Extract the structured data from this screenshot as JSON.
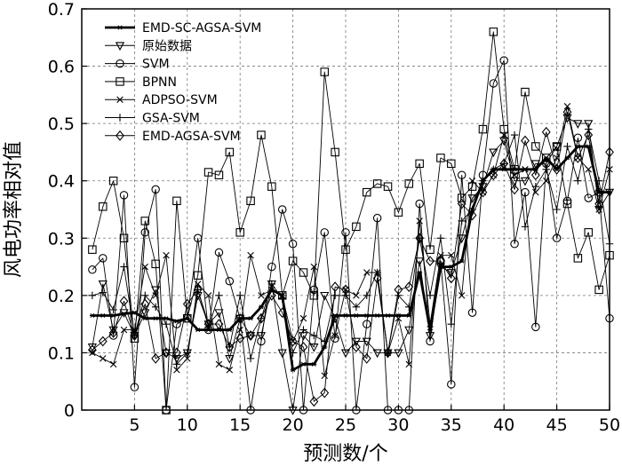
{
  "chart_data": {
    "type": "line",
    "xlabel": "预测数/个",
    "ylabel": "风电功率相对值",
    "xlim": [
      0,
      50
    ],
    "ylim": [
      0,
      0.7
    ],
    "xticks": [
      5,
      10,
      15,
      20,
      25,
      30,
      35,
      40,
      45,
      50
    ],
    "yticks": [
      0,
      0.1,
      0.2,
      0.3,
      0.4,
      0.5,
      0.6,
      0.7
    ],
    "xtick_labels": [
      "5",
      "10",
      "15",
      "20",
      "25",
      "30",
      "35",
      "40",
      "45",
      "50"
    ],
    "ytick_labels": [
      "0",
      "0.1",
      "0.2",
      "0.3",
      "0.4",
      "0.5",
      "0.6",
      "0.7"
    ],
    "grid": true,
    "legend_position": "top-left",
    "x": [
      1,
      2,
      3,
      4,
      5,
      6,
      7,
      8,
      9,
      10,
      11,
      12,
      13,
      14,
      15,
      16,
      17,
      18,
      19,
      20,
      21,
      22,
      23,
      24,
      25,
      26,
      27,
      28,
      29,
      30,
      31,
      32,
      33,
      34,
      35,
      36,
      37,
      38,
      39,
      40,
      41,
      42,
      43,
      44,
      45,
      46,
      47,
      48,
      49,
      50
    ],
    "series": [
      {
        "name": "EMD-SC-AGSA-SVM",
        "marker": "star",
        "bold": true,
        "values": [
          0.165,
          0.165,
          0.165,
          0.168,
          0.17,
          0.16,
          0.16,
          0.16,
          0.155,
          0.16,
          0.14,
          0.14,
          0.14,
          0.14,
          0.16,
          0.16,
          0.18,
          0.21,
          0.2,
          0.07,
          0.08,
          0.08,
          0.11,
          0.165,
          0.165,
          0.165,
          0.165,
          0.165,
          0.165,
          0.165,
          0.165,
          0.24,
          0.14,
          0.25,
          0.25,
          0.26,
          0.35,
          0.4,
          0.42,
          0.42,
          0.42,
          0.42,
          0.42,
          0.44,
          0.42,
          0.44,
          0.46,
          0.46,
          0.38,
          0.38
        ]
      },
      {
        "name": "原始数据",
        "marker": "triangle-down",
        "bold": false,
        "values": [
          0.11,
          0.22,
          0.14,
          0.17,
          0.13,
          0.17,
          0.21,
          0.1,
          0.09,
          0.1,
          0.2,
          0.15,
          0.17,
          0.09,
          0.16,
          0.13,
          0.13,
          0.22,
          0.1,
          0.0,
          0.13,
          0.11,
          0.2,
          0.16,
          0.1,
          0.12,
          0.12,
          0.1,
          0.1,
          0.1,
          0.14,
          0.26,
          0.13,
          0.25,
          0.24,
          0.3,
          0.37,
          0.39,
          0.45,
          0.47,
          0.4,
          0.4,
          0.43,
          0.43,
          0.46,
          0.51,
          0.5,
          0.5,
          0.35,
          0.38
        ]
      },
      {
        "name": "SVM",
        "marker": "circle",
        "bold": false,
        "values": [
          0.245,
          0.265,
          0.13,
          0.375,
          0.04,
          0.31,
          0.385,
          0.0,
          0.15,
          0.16,
          0.3,
          0.14,
          0.275,
          0.225,
          0.16,
          0.0,
          0.12,
          0.25,
          0.35,
          0.29,
          0.0,
          0.21,
          0.31,
          0.125,
          0.31,
          0.0,
          0.15,
          0.335,
          0.0,
          0.0,
          0.0,
          0.36,
          0.12,
          0.26,
          0.045,
          0.41,
          0.17,
          0.41,
          0.57,
          0.61,
          0.29,
          0.38,
          0.145,
          0.43,
          0.3,
          0.365,
          0.475,
          0.37,
          0.38,
          0.16
        ]
      },
      {
        "name": "BPNN",
        "marker": "square",
        "bold": false,
        "values": [
          0.28,
          0.355,
          0.4,
          0.3,
          0.125,
          0.33,
          0.255,
          0.0,
          0.365,
          0.16,
          0.235,
          0.415,
          0.41,
          0.45,
          0.31,
          0.365,
          0.48,
          0.39,
          0.2,
          0.26,
          0.24,
          0.2,
          0.59,
          0.45,
          0.28,
          0.32,
          0.38,
          0.395,
          0.39,
          0.345,
          0.395,
          0.43,
          0.28,
          0.44,
          0.43,
          0.37,
          0.39,
          0.49,
          0.66,
          0.49,
          0.42,
          0.555,
          0.46,
          0.44,
          0.46,
          0.36,
          0.265,
          0.31,
          0.21,
          0.27
        ]
      },
      {
        "name": "ADPSO-SVM",
        "marker": "x",
        "bold": false,
        "values": [
          0.1,
          0.09,
          0.08,
          0.14,
          0.14,
          0.25,
          0.2,
          0.27,
          0.07,
          0.09,
          0.22,
          0.2,
          0.08,
          0.07,
          0.14,
          0.27,
          0.2,
          0.21,
          0.2,
          0.12,
          0.16,
          0.25,
          0.06,
          0.13,
          0.21,
          0.2,
          0.24,
          0.24,
          0.1,
          0.16,
          0.08,
          0.33,
          0.15,
          0.27,
          0.27,
          0.2,
          0.4,
          0.38,
          0.41,
          0.48,
          0.41,
          0.42,
          0.38,
          0.4,
          0.44,
          0.53,
          0.44,
          0.42,
          0.35,
          0.42
        ]
      },
      {
        "name": "GSA-SVM",
        "marker": "plus",
        "bold": false,
        "values": [
          0.2,
          0.205,
          0.175,
          0.25,
          0.13,
          0.2,
          0.18,
          0.15,
          0.08,
          0.1,
          0.21,
          0.145,
          0.2,
          0.11,
          0.2,
          0.09,
          0.16,
          0.22,
          0.195,
          0.1,
          0.14,
          0.13,
          0.12,
          0.2,
          0.2,
          0.18,
          0.2,
          0.24,
          0.1,
          0.2,
          0.18,
          0.3,
          0.2,
          0.3,
          0.15,
          0.33,
          0.35,
          0.4,
          0.42,
          0.43,
          0.48,
          0.32,
          0.39,
          0.42,
          0.35,
          0.46,
          0.4,
          0.49,
          0.4,
          0.29
        ]
      },
      {
        "name": "EMD-AGSA-SVM",
        "marker": "diamond",
        "bold": false,
        "values": [
          0.105,
          0.12,
          0.135,
          0.19,
          0.13,
          0.185,
          0.09,
          0.1,
          0.1,
          0.185,
          0.21,
          0.15,
          0.15,
          0.11,
          0.125,
          0.13,
          0.16,
          0.2,
          0.17,
          0.12,
          0.11,
          0.015,
          0.03,
          0.215,
          0.21,
          0.11,
          0.09,
          0.23,
          0.1,
          0.21,
          0.215,
          0.3,
          0.26,
          0.26,
          0.23,
          0.36,
          0.34,
          0.38,
          0.41,
          0.43,
          0.385,
          0.47,
          0.41,
          0.485,
          0.42,
          0.52,
          0.44,
          0.48,
          0.36,
          0.45
        ]
      }
    ]
  }
}
